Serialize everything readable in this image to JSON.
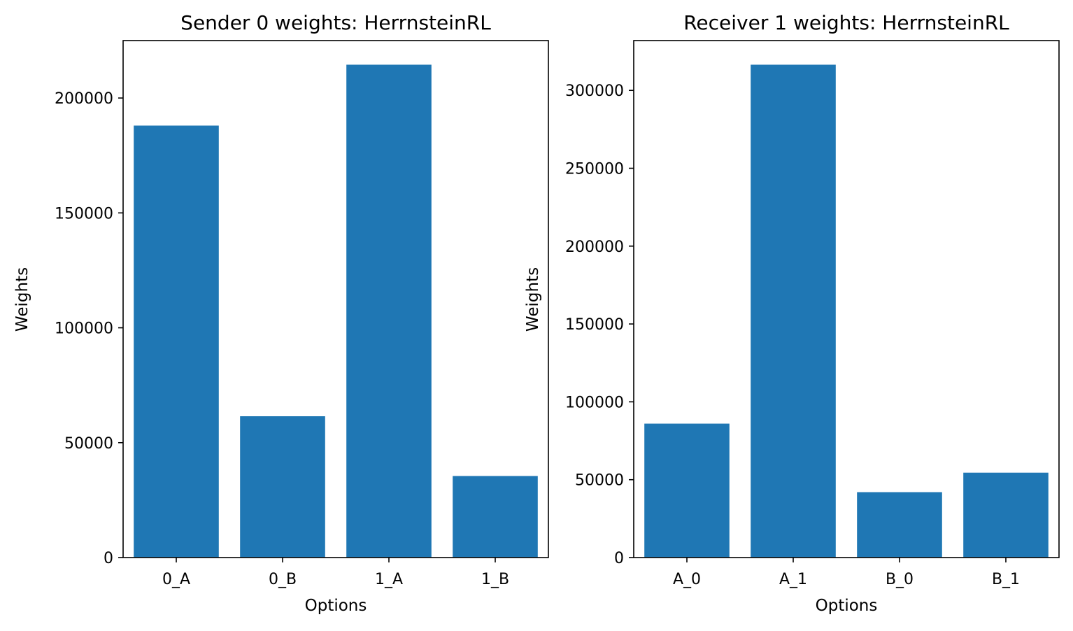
{
  "figure": {
    "bar_color": "#1f77b4"
  },
  "chart_data": [
    {
      "type": "bar",
      "title": "Sender 0 weights: HerrnsteinRL",
      "xlabel": "Options",
      "ylabel": "Weights",
      "categories": [
        "0_A",
        "0_B",
        "1_A",
        "1_B"
      ],
      "values": [
        188000,
        61500,
        214500,
        35500
      ],
      "ylim": [
        0,
        225000
      ],
      "yticks": [
        0,
        50000,
        100000,
        150000,
        200000
      ],
      "grid": false,
      "legend": "none"
    },
    {
      "type": "bar",
      "title": "Receiver 1 weights: HerrnsteinRL",
      "xlabel": "Options",
      "ylabel": "Weights",
      "categories": [
        "A_0",
        "A_1",
        "B_0",
        "B_1"
      ],
      "values": [
        86000,
        316500,
        42000,
        54500
      ],
      "ylim": [
        0,
        332000
      ],
      "yticks": [
        0,
        50000,
        100000,
        150000,
        200000,
        250000,
        300000
      ],
      "grid": false,
      "legend": "none"
    }
  ]
}
